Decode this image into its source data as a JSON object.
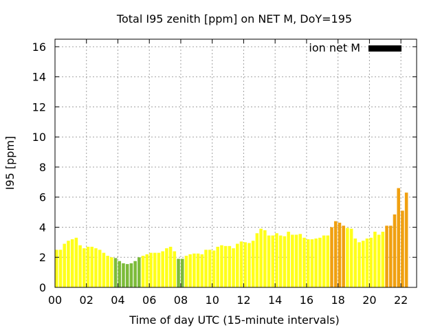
{
  "chart_data": {
    "type": "bar",
    "title": "Total I95 zenith [ppm] on NET M, DoY=195",
    "xlabel": "Time of day UTC (15-minute intervals)",
    "ylabel": "I95 [ppm]",
    "xlim": [
      0,
      23
    ],
    "ylim": [
      0,
      16.5
    ],
    "x_ticks": [
      "00",
      "02",
      "04",
      "06",
      "08",
      "10",
      "12",
      "14",
      "16",
      "18",
      "20",
      "22"
    ],
    "y_ticks": [
      "0",
      "2",
      "4",
      "6",
      "8",
      "10",
      "12",
      "14",
      "16"
    ],
    "grid": true,
    "legend": {
      "position": "top-right",
      "label": "ion net M",
      "color": "#000000"
    },
    "colors": {
      "green": "#7cbb3a",
      "yellow": "#ffff1a",
      "orange": "#f0a010"
    },
    "interval_hours": 0.25,
    "series": [
      {
        "values": [
          2.5,
          2.5,
          2.9,
          3.1,
          3.2,
          3.3,
          2.8,
          2.6,
          2.7,
          2.7,
          2.6,
          2.5,
          2.3,
          2.1,
          2.0,
          1.95,
          1.75,
          1.6,
          1.55,
          1.6,
          1.75,
          2.0,
          2.1,
          2.2,
          2.3,
          2.3,
          2.3,
          2.4,
          2.6,
          2.7,
          2.4,
          1.9,
          1.9,
          2.1,
          2.2,
          2.25,
          2.25,
          2.2,
          2.5,
          2.5,
          2.45,
          2.7,
          2.8,
          2.75,
          2.75,
          2.6,
          2.9,
          3.05,
          3.0,
          2.95,
          3.1,
          3.6,
          3.9,
          3.8,
          3.45,
          3.45,
          3.6,
          3.45,
          3.4,
          3.7,
          3.5,
          3.5,
          3.55,
          3.3,
          3.2,
          3.2,
          3.25,
          3.3,
          3.45,
          3.45,
          4.0,
          4.4,
          4.3,
          4.1,
          3.95,
          3.9,
          3.25,
          3.0,
          3.1,
          3.25,
          3.3,
          3.7,
          3.5,
          3.7,
          4.1,
          4.1,
          4.85,
          6.6,
          5.1,
          6.3
        ],
        "categories": [
          "y",
          "y",
          "y",
          "y",
          "y",
          "y",
          "y",
          "y",
          "y",
          "y",
          "y",
          "y",
          "y",
          "y",
          "y",
          "g",
          "g",
          "g",
          "g",
          "g",
          "g",
          "g",
          "y",
          "y",
          "y",
          "y",
          "y",
          "y",
          "y",
          "y",
          "y",
          "g",
          "g",
          "y",
          "y",
          "y",
          "y",
          "y",
          "y",
          "y",
          "y",
          "y",
          "y",
          "y",
          "y",
          "y",
          "y",
          "y",
          "y",
          "y",
          "y",
          "y",
          "y",
          "y",
          "y",
          "y",
          "y",
          "y",
          "y",
          "y",
          "y",
          "y",
          "y",
          "y",
          "y",
          "y",
          "y",
          "y",
          "y",
          "y",
          "o",
          "o",
          "o",
          "o",
          "y",
          "y",
          "y",
          "y",
          "y",
          "y",
          "y",
          "y",
          "y",
          "y",
          "o",
          "o",
          "o",
          "o",
          "o",
          "o"
        ]
      }
    ]
  }
}
